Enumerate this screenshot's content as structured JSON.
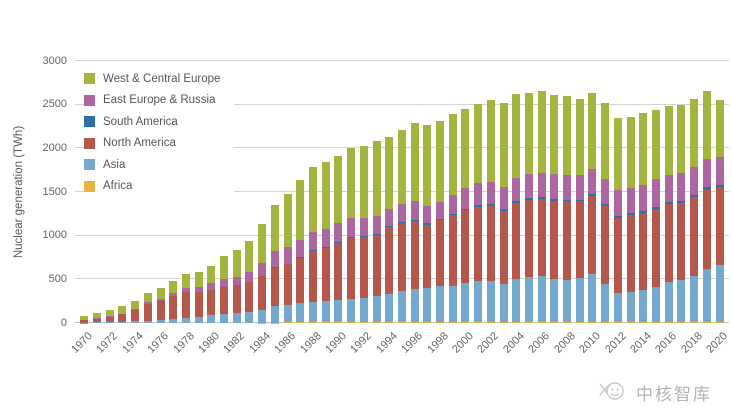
{
  "figure": {
    "watermark_text": "中核智库"
  },
  "chart_data": {
    "type": "bar",
    "stacked": true,
    "title": "",
    "xlabel": "",
    "ylabel": "Nuclear generation (TWh)",
    "ylim": [
      0,
      3000
    ],
    "yticks": [
      0,
      500,
      1000,
      1500,
      2000,
      2500,
      3000
    ],
    "grid": true,
    "legend_position": "top-left-inside",
    "x_tick_label_interval_years": 2,
    "x_tick_label_rotation_deg": 45,
    "years": [
      1970,
      1971,
      1972,
      1973,
      1974,
      1975,
      1976,
      1977,
      1978,
      1979,
      1980,
      1981,
      1982,
      1983,
      1984,
      1985,
      1986,
      1987,
      1988,
      1989,
      1990,
      1991,
      1992,
      1993,
      1994,
      1995,
      1996,
      1997,
      1998,
      1999,
      2000,
      2001,
      2002,
      2003,
      2004,
      2005,
      2006,
      2007,
      2008,
      2009,
      2010,
      2011,
      2012,
      2013,
      2014,
      2015,
      2016,
      2017,
      2018,
      2019,
      2020
    ],
    "legend": [
      {
        "label": "West & Central Europe",
        "color": "#a3b43f"
      },
      {
        "label": "East Europe & Russia",
        "color": "#ae66a0"
      },
      {
        "label": "South America",
        "color": "#2d6fa9"
      },
      {
        "label": "North America",
        "color": "#b5574a"
      },
      {
        "label": "Asia",
        "color": "#74a8cd"
      },
      {
        "label": "Africa",
        "color": "#e8b23f"
      }
    ],
    "stack_order": "bottom to top: Africa, Asia, North America, South America, East Europe & Russia, West & Central Europe",
    "series": [
      {
        "name": "Africa",
        "color": "#e8b23f",
        "values": [
          0,
          0,
          0,
          0,
          0,
          0,
          0,
          0,
          0,
          0,
          0,
          0,
          0,
          0,
          3,
          5,
          7,
          6,
          10,
          11,
          8,
          9,
          9,
          7,
          10,
          11,
          12,
          13,
          14,
          13,
          13,
          11,
          12,
          13,
          14,
          12,
          10,
          12,
          13,
          12,
          12,
          13,
          12,
          14,
          14,
          11,
          15,
          15,
          11,
          13,
          12
        ]
      },
      {
        "name": "Asia",
        "color": "#74a8cd",
        "values": [
          5,
          8,
          10,
          12,
          20,
          27,
          35,
          42,
          55,
          65,
          90,
          100,
          110,
          125,
          145,
          185,
          200,
          220,
          230,
          240,
          255,
          270,
          280,
          305,
          325,
          360,
          375,
          390,
          410,
          415,
          450,
          465,
          470,
          435,
          490,
          520,
          525,
          490,
          485,
          500,
          545,
          435,
          330,
          340,
          360,
          405,
          450,
          480,
          530,
          610,
          650
        ]
      },
      {
        "name": "North America",
        "color": "#b5574a",
        "values": [
          24,
          42,
          60,
          88,
          124,
          190,
          210,
          265,
          300,
          285,
          290,
          315,
          320,
          340,
          385,
          445,
          465,
          520,
          585,
          610,
          650,
          700,
          695,
          700,
          760,
          775,
          780,
          720,
          755,
          810,
          830,
          855,
          860,
          840,
          875,
          880,
          885,
          900,
          895,
          880,
          900,
          890,
          865,
          880,
          890,
          895,
          900,
          885,
          900,
          905,
          890
        ]
      },
      {
        "name": "South America",
        "color": "#2d6fa9",
        "values": [
          0,
          0,
          0,
          0,
          1,
          2,
          3,
          3,
          3,
          3,
          2,
          3,
          2,
          3,
          4,
          8,
          8,
          8,
          7,
          7,
          11,
          11,
          10,
          11,
          12,
          16,
          17,
          19,
          17,
          16,
          17,
          20,
          20,
          20,
          20,
          22,
          21,
          19,
          20,
          20,
          21,
          21,
          21,
          21,
          20,
          21,
          24,
          21,
          23,
          25,
          25
        ]
      },
      {
        "name": "East Europe & Russia",
        "color": "#ae66a0",
        "values": [
          4,
          5,
          7,
          9,
          14,
          22,
          28,
          35,
          43,
          55,
          80,
          90,
          100,
          115,
          145,
          180,
          185,
          195,
          205,
          210,
          225,
          212,
          205,
          207,
          200,
          200,
          208,
          200,
          195,
          210,
          240,
          250,
          255,
          255,
          260,
          275,
          280,
          285,
          285,
          280,
          290,
          295,
          295,
          290,
          300,
          315,
          310,
          315,
          320,
          320,
          325
        ]
      },
      {
        "name": "West & Central Europe",
        "color": "#a3b43f",
        "values": [
          47,
          55,
          73,
          91,
          96,
          99,
          124,
          135,
          159,
          172,
          188,
          262,
          308,
          357,
          458,
          527,
          615,
          691,
          753,
          767,
          761,
          808,
          831,
          860,
          823,
          848,
          898,
          928,
          919,
          926,
          900,
          909,
          933,
          957,
          961,
          921,
          939,
          904,
          902,
          868,
          862,
          866,
          827,
          815,
          826,
          793,
          781,
          784,
          776,
          787,
          648
        ]
      }
    ],
    "totals": [
      80,
      110,
      150,
      200,
      255,
      340,
      400,
      480,
      560,
      580,
      650,
      770,
      840,
      940,
      1140,
      1350,
      1480,
      1640,
      1790,
      1845,
      1910,
      2010,
      2030,
      2090,
      2130,
      2210,
      2290,
      2270,
      2310,
      2390,
      2450,
      2510,
      2550,
      2520,
      2620,
      2630,
      2660,
      2610,
      2600,
      2560,
      2630,
      2520,
      2350,
      2360,
      2410,
      2440,
      2480,
      2500,
      2560,
      2660,
      2550
    ]
  }
}
